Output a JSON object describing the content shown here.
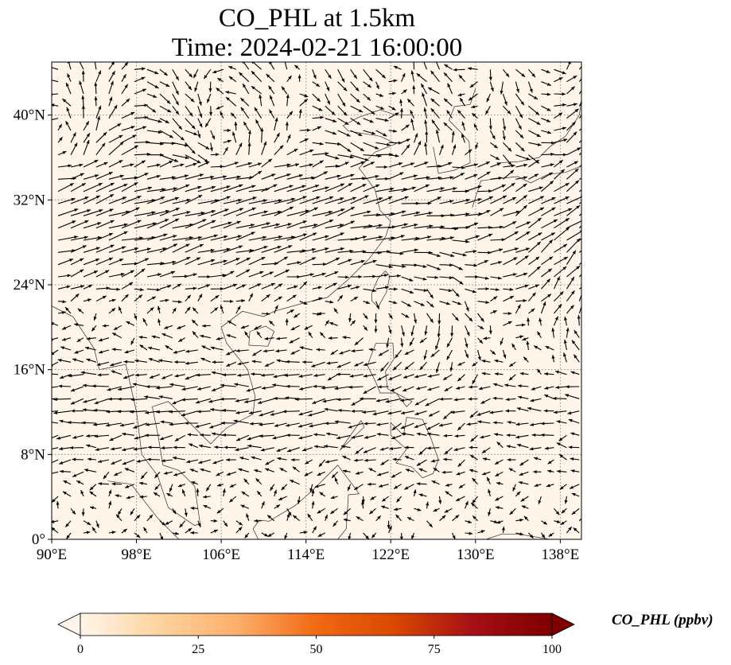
{
  "title": {
    "line1": "CO_PHL at 1.5km",
    "line2": "Time: 2024-02-21 16:00:00"
  },
  "map": {
    "extent_lon": [
      90,
      140
    ],
    "extent_lat": [
      0,
      45
    ],
    "background_color": "#fff5e9",
    "lon_ticks": [
      {
        "value": 90,
        "label": "90°E"
      },
      {
        "value": 98,
        "label": "98°E"
      },
      {
        "value": 106,
        "label": "106°E"
      },
      {
        "value": 114,
        "label": "114°E"
      },
      {
        "value": 122,
        "label": "122°E"
      },
      {
        "value": 130,
        "label": "130°E"
      },
      {
        "value": 138,
        "label": "138°E"
      }
    ],
    "lat_ticks": [
      {
        "value": 0,
        "label": "0°"
      },
      {
        "value": 8,
        "label": "8°N"
      },
      {
        "value": 16,
        "label": "16°N"
      },
      {
        "value": 24,
        "label": "24°N"
      },
      {
        "value": 32,
        "label": "32°N"
      },
      {
        "value": 40,
        "label": "40°N"
      }
    ],
    "gridlines": "dotted",
    "wind_vectors": "black arrows"
  },
  "colorbar": {
    "label": "CO_PHL (ppbv)",
    "range": [
      0,
      100
    ],
    "ticks": [
      {
        "value": 0,
        "label": "0"
      },
      {
        "value": 25,
        "label": "25"
      },
      {
        "value": 50,
        "label": "50"
      },
      {
        "value": 75,
        "label": "75"
      },
      {
        "value": 100,
        "label": "100"
      }
    ],
    "colormap": [
      "#fff5eb",
      "#fdd49e",
      "#fdae6b",
      "#f16913",
      "#d94801",
      "#a50f15",
      "#7f0000"
    ],
    "extend": "both"
  }
}
